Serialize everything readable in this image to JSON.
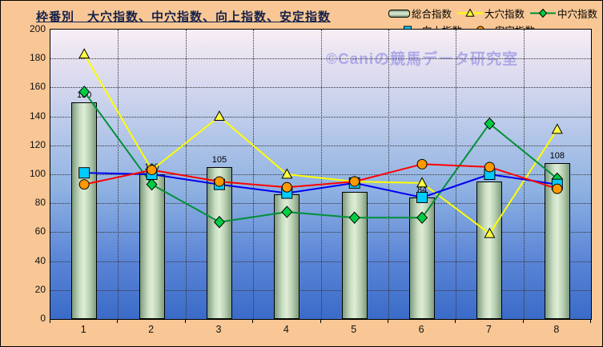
{
  "title": {
    "text": "枠番別　大穴指数、中穴指数、向上指数、安定指数"
  },
  "watermark": "©Caniの競馬データ研究室",
  "colors": {
    "background": "#F8C795",
    "plot_gradient_top": "#F8EFF5",
    "plot_gradient_bottom": "#3A6BC8",
    "bar_fill_light": "#DFEDD7",
    "bar_fill_dark": "#7F9B80",
    "gridline": "#333333",
    "title_text": "#14204A",
    "watermark_text": "#ACA9E8"
  },
  "chart_data": {
    "type": "bar",
    "subtype": "bar+line combo",
    "categories": [
      "1",
      "2",
      "3",
      "4",
      "5",
      "6",
      "7",
      "8"
    ],
    "xlabel": "",
    "ylabel": "",
    "ylim": [
      0,
      200
    ],
    "ytick_step": 20,
    "grid": "horizontal and vertical dotted",
    "legend_position": "top-right, two rows",
    "bar_series": {
      "name": "総合指数",
      "values": [
        150,
        100,
        105,
        86,
        88,
        84,
        95,
        108
      ],
      "data_labels": [
        "150",
        "100",
        "105",
        "86",
        "88",
        "84",
        "95",
        "108"
      ]
    },
    "series": [
      {
        "name": "大穴指数",
        "type": "line",
        "marker": "triangle",
        "line_color": "#FFFF00",
        "marker_fill": "#FFFF44",
        "values": [
          183,
          103,
          140,
          100,
          95,
          94,
          59,
          131
        ]
      },
      {
        "name": "中穴指数",
        "type": "line",
        "marker": "diamond",
        "line_color": "#009038",
        "marker_fill": "#00CC44",
        "values": [
          157,
          93,
          67,
          74,
          70,
          70,
          135,
          97
        ]
      },
      {
        "name": "向上指数",
        "type": "line",
        "marker": "square",
        "line_color": "#0000F0",
        "marker_fill": "#00CCFF",
        "values": [
          101,
          100,
          93,
          87,
          94,
          84,
          100,
          93
        ]
      },
      {
        "name": "安定指数",
        "type": "line",
        "marker": "circle",
        "line_color": "#FF0000",
        "marker_fill": "#FF9900",
        "values": [
          93,
          103,
          95,
          91,
          95,
          107,
          105,
          90
        ]
      }
    ]
  }
}
